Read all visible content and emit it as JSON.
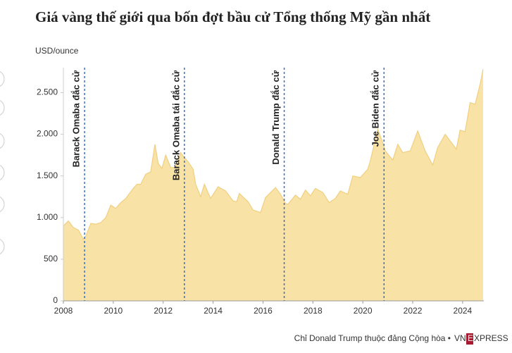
{
  "chart_data": {
    "type": "area",
    "title": "Giá vàng thế giới qua bốn đợt bầu cử Tổng thống Mỹ gần nhất",
    "ylabel": "USD/ounce",
    "x": [
      2008.0,
      2008.2,
      2008.4,
      2008.6,
      2008.8,
      2008.9,
      2009.1,
      2009.3,
      2009.5,
      2009.7,
      2009.9,
      2010.1,
      2010.3,
      2010.5,
      2010.8,
      2010.95,
      2011.1,
      2011.3,
      2011.5,
      2011.67,
      2011.8,
      2011.95,
      2012.1,
      2012.3,
      2012.5,
      2012.7,
      2012.85,
      2013.0,
      2013.2,
      2013.3,
      2013.5,
      2013.65,
      2013.9,
      2014.2,
      2014.5,
      2014.8,
      2014.95,
      2015.05,
      2015.4,
      2015.6,
      2015.9,
      2016.1,
      2016.5,
      2016.7,
      2016.9,
      2017.0,
      2017.3,
      2017.5,
      2017.7,
      2017.9,
      2018.1,
      2018.4,
      2018.65,
      2018.9,
      2019.1,
      2019.4,
      2019.6,
      2019.9,
      2020.2,
      2020.3,
      2020.6,
      2020.8,
      2020.9,
      2021.2,
      2021.4,
      2021.6,
      2021.9,
      2022.2,
      2022.5,
      2022.8,
      2023.0,
      2023.3,
      2023.5,
      2023.75,
      2023.9,
      2024.1,
      2024.3,
      2024.5,
      2024.7,
      2024.82
    ],
    "series": [
      {
        "name": "Giá vàng",
        "color": "#f0cf80",
        "fill": "#f8e2a6",
        "values": [
          900,
          960,
          880,
          850,
          740,
          780,
          930,
          920,
          940,
          1000,
          1150,
          1110,
          1180,
          1230,
          1350,
          1400,
          1400,
          1520,
          1550,
          1880,
          1650,
          1590,
          1750,
          1600,
          1600,
          1780,
          1720,
          1670,
          1580,
          1400,
          1250,
          1400,
          1230,
          1370,
          1320,
          1200,
          1190,
          1290,
          1190,
          1090,
          1060,
          1240,
          1360,
          1280,
          1170,
          1160,
          1270,
          1220,
          1330,
          1260,
          1350,
          1300,
          1180,
          1230,
          1320,
          1280,
          1500,
          1480,
          1580,
          1680,
          2060,
          1900,
          1800,
          1690,
          1880,
          1780,
          1800,
          2040,
          1800,
          1630,
          1840,
          2000,
          1920,
          1820,
          2050,
          2030,
          2380,
          2360,
          2600,
          2780
        ]
      }
    ],
    "xlim": [
      2008,
      2024.85
    ],
    "xticks": [
      2008,
      2010,
      2012,
      2014,
      2016,
      2018,
      2020,
      2022,
      2024
    ],
    "ylim": [
      0,
      2800
    ],
    "yticks": [
      0,
      500,
      {
        "value": 1000,
        "label": "1.000"
      },
      {
        "value": 1500,
        "label": "1.500"
      },
      {
        "value": 2000,
        "label": "2.000"
      },
      {
        "value": 2500,
        "label": "2.500"
      }
    ],
    "grid": false,
    "events": [
      {
        "x": 2008.85,
        "label": "Barack Omaba đắc cử"
      },
      {
        "x": 2012.85,
        "label": "Barack Omaba tái đắc cử"
      },
      {
        "x": 2016.85,
        "label": "Donald Trump đắc cử"
      },
      {
        "x": 2020.85,
        "label": "Joe Biden đắc cử"
      }
    ],
    "event_color": "#3a6fc4",
    "note": "Chỉ Donald Trump thuộc đảng Cộng hòa •",
    "logo": [
      "VN",
      "E",
      "XPRESS"
    ]
  }
}
